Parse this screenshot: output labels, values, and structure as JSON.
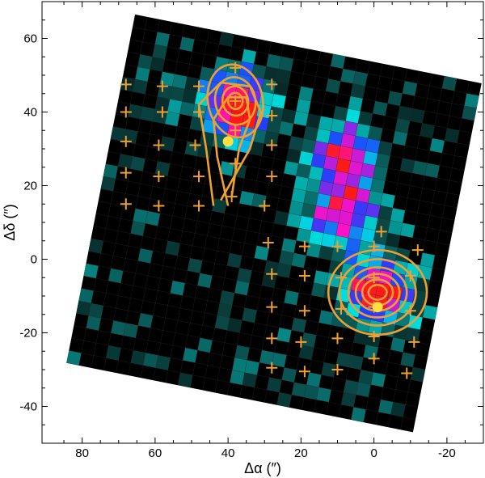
{
  "chart_data": {
    "type": "heatmap",
    "title": "",
    "xlabel": "Δα (″)",
    "ylabel": "Δδ (″)",
    "xlim": [
      91,
      -30
    ],
    "ylim": [
      -50,
      70
    ],
    "x_ticks": [
      80,
      60,
      40,
      20,
      0,
      -20
    ],
    "y_ticks": [
      -40,
      -20,
      0,
      20,
      40,
      60
    ],
    "x_tick_labels": [
      "80",
      "60",
      "40",
      "20",
      "0",
      "-20"
    ],
    "y_tick_labels": [
      "-40",
      "-20",
      "0",
      "20",
      "40",
      "60"
    ],
    "grid": false,
    "colors": {
      "map_background": "#000000",
      "map_low": "#0a4a48",
      "map_mid": "#00e0e0",
      "map_blue": "#1e40ff",
      "map_magenta": "#ff10c8",
      "map_peak": "#ff1a1a",
      "contour": "#f0a030",
      "cross": "#f0a030",
      "dot": "#ffe040"
    },
    "map_region": {
      "pixel_size_arcsec": 3.45,
      "rotation_deg": -10,
      "corners_arcsec": [
        [
          65.5,
          66.5
        ],
        [
          84.3,
          -28.2
        ],
        [
          -10.7,
          -47.0
        ],
        [
          -29.5,
          47.8
        ]
      ]
    },
    "sources": [
      {
        "x": 38,
        "y": 42,
        "peak_level": 1.0
      },
      {
        "x": -1,
        "y": -9,
        "peak_level": 1.0
      },
      {
        "x": 8,
        "y": 28,
        "peak_level": 0.85
      },
      {
        "x": 8,
        "y": 12,
        "peak_level": 0.75
      }
    ],
    "contour_sets": [
      {
        "center": [
          -1,
          -9
        ],
        "radii_x": [
          2.5,
          4.2,
          6.0,
          8.0,
          10.5,
          13.5
        ],
        "radii_y": [
          2.0,
          3.5,
          5.0,
          6.8,
          9.0,
          11.5
        ],
        "rotation_deg": 0
      },
      {
        "center": [
          38,
          43
        ],
        "radii_x": [
          2.0,
          3.5,
          5.5,
          7.5
        ],
        "radii_y": [
          2.2,
          4.0,
          6.5,
          10.0
        ],
        "rotation_deg": -12
      }
    ],
    "markers_cross": [
      [
        68,
        47.5
      ],
      [
        58,
        47
      ],
      [
        48,
        47
      ],
      [
        38,
        52
      ],
      [
        28,
        47.5
      ],
      [
        68,
        40
      ],
      [
        58,
        40
      ],
      [
        48,
        40
      ],
      [
        38,
        43
      ],
      [
        28,
        39
      ],
      [
        68,
        32
      ],
      [
        59,
        31
      ],
      [
        49,
        31
      ],
      [
        38,
        35
      ],
      [
        28,
        31
      ],
      [
        68,
        23.5
      ],
      [
        59,
        22.5
      ],
      [
        48,
        22.5
      ],
      [
        38,
        26
      ],
      [
        28,
        22.5
      ],
      [
        68,
        15
      ],
      [
        59,
        14.5
      ],
      [
        48,
        14.5
      ],
      [
        39,
        17
      ],
      [
        30,
        14.5
      ],
      [
        29,
        4.5
      ],
      [
        19,
        3.5
      ],
      [
        10,
        3.5
      ],
      [
        0,
        3.5
      ],
      [
        -12,
        2.5
      ],
      [
        -2,
        7.5
      ],
      [
        28,
        -4
      ],
      [
        19,
        -4.5
      ],
      [
        9,
        -5
      ],
      [
        0,
        -5
      ],
      [
        -10,
        -4.5
      ],
      [
        28,
        -13
      ],
      [
        19,
        -14
      ],
      [
        9,
        -13.5
      ],
      [
        0,
        -13
      ],
      [
        -10,
        -14
      ],
      [
        28,
        -21.5
      ],
      [
        20,
        -22.5
      ],
      [
        10,
        -21.5
      ],
      [
        0,
        -21
      ],
      [
        -11,
        -22.5
      ],
      [
        28,
        -29.5
      ],
      [
        19,
        -30.5
      ],
      [
        10,
        -30
      ],
      [
        0,
        -27
      ],
      [
        -9,
        -31
      ]
    ],
    "markers_dot": [
      [
        40,
        32
      ],
      [
        -1,
        -13
      ]
    ]
  }
}
